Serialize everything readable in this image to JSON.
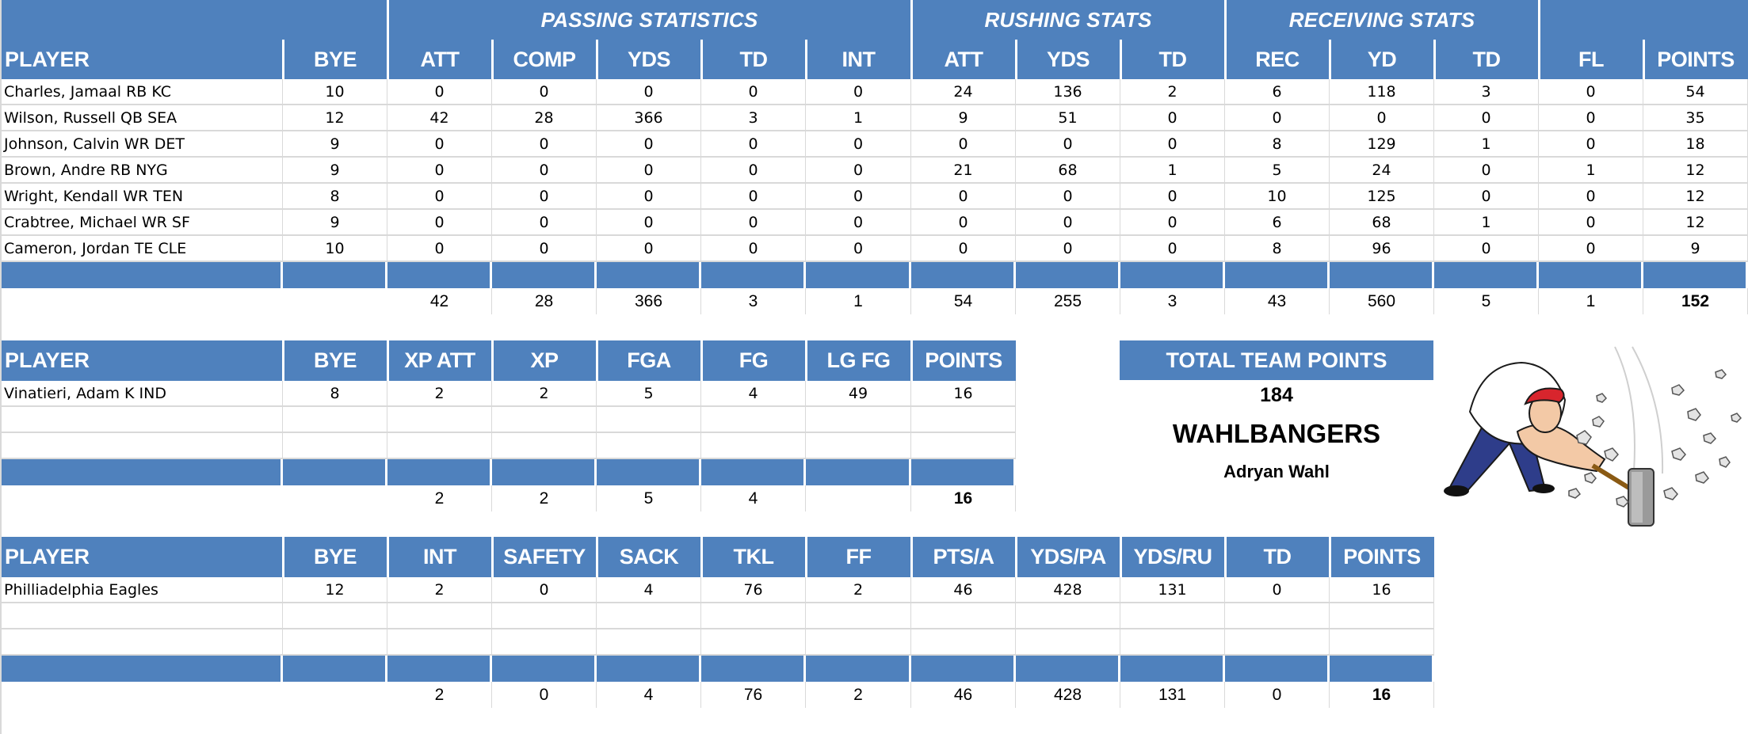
{
  "colors": {
    "header_blue": "#4f81bd",
    "grid_gray": "#d9d9d9",
    "text": "#000000",
    "header_text": "#ffffff"
  },
  "offense": {
    "groups": [
      {
        "label": "PASSING STATISTICS"
      },
      {
        "label": "RUSHING STATS"
      },
      {
        "label": "RECEIVING STATS"
      }
    ],
    "columns": [
      "PLAYER",
      "BYE",
      "ATT",
      "COMP",
      "YDS",
      "TD",
      "INT",
      "ATT",
      "YDS",
      "TD",
      "REC",
      "YD",
      "TD",
      "FL",
      "POINTS"
    ],
    "rows": [
      [
        "Charles, Jamaal RB KC",
        "10",
        "0",
        "0",
        "0",
        "0",
        "0",
        "24",
        "136",
        "2",
        "6",
        "118",
        "3",
        "0",
        "54"
      ],
      [
        "Wilson, Russell QB SEA",
        "12",
        "42",
        "28",
        "366",
        "3",
        "1",
        "9",
        "51",
        "0",
        "0",
        "0",
        "0",
        "0",
        "35"
      ],
      [
        "Johnson, Calvin WR DET",
        "9",
        "0",
        "0",
        "0",
        "0",
        "0",
        "0",
        "0",
        "0",
        "8",
        "129",
        "1",
        "0",
        "18"
      ],
      [
        "Brown, Andre RB NYG",
        "9",
        "0",
        "0",
        "0",
        "0",
        "0",
        "21",
        "68",
        "1",
        "5",
        "24",
        "0",
        "1",
        "12"
      ],
      [
        "Wright, Kendall WR TEN",
        "8",
        "0",
        "0",
        "0",
        "0",
        "0",
        "0",
        "0",
        "0",
        "10",
        "125",
        "0",
        "0",
        "12"
      ],
      [
        "Crabtree, Michael WR SF",
        "9",
        "0",
        "0",
        "0",
        "0",
        "0",
        "0",
        "0",
        "0",
        "6",
        "68",
        "1",
        "0",
        "12"
      ],
      [
        "Cameron, Jordan TE CLE",
        "10",
        "0",
        "0",
        "0",
        "0",
        "0",
        "0",
        "0",
        "0",
        "8",
        "96",
        "0",
        "0",
        "9"
      ]
    ],
    "totals": [
      "",
      "",
      "42",
      "28",
      "366",
      "3",
      "1",
      "54",
      "255",
      "3",
      "43",
      "560",
      "5",
      "1",
      "152"
    ]
  },
  "kicker": {
    "columns": [
      "PLAYER",
      "BYE",
      "XP ATT",
      "XP",
      "FGA",
      "FG",
      "LG FG",
      "POINTS"
    ],
    "rows": [
      [
        "Vinatieri, Adam K IND",
        "8",
        "2",
        "2",
        "5",
        "4",
        "49",
        "16"
      ],
      [
        "",
        "",
        "",
        "",
        "",
        "",
        "",
        ""
      ],
      [
        "",
        "",
        "",
        "",
        "",
        "",
        "",
        ""
      ]
    ],
    "totals": [
      "",
      "",
      "2",
      "2",
      "5",
      "4",
      "",
      "16"
    ]
  },
  "defense": {
    "columns": [
      "PLAYER",
      "BYE",
      "INT",
      "SAFETY",
      "SACK",
      "TKL",
      "FF",
      "PTS/A",
      "YDS/PA",
      "YDS/RU",
      "TD",
      "POINTS"
    ],
    "rows": [
      [
        "Philliadelphia Eagles",
        "12",
        "2",
        "0",
        "4",
        "76",
        "2",
        "46",
        "428",
        "131",
        "0",
        "16"
      ],
      [
        "",
        "",
        "",
        "",
        "",
        "",
        "",
        "",
        "",
        "",
        "",
        ""
      ],
      [
        "",
        "",
        "",
        "",
        "",
        "",
        "",
        "",
        "",
        "",
        "",
        ""
      ]
    ],
    "totals": [
      "",
      "",
      "2",
      "0",
      "4",
      "76",
      "2",
      "46",
      "428",
      "131",
      "0",
      "16"
    ]
  },
  "team": {
    "header": "TOTAL TEAM POINTS",
    "total_points": "184",
    "team_name": "WAHLBANGERS",
    "owner": "Adryan Wahl",
    "logo_icon": "sledgehammer-man-icon"
  }
}
